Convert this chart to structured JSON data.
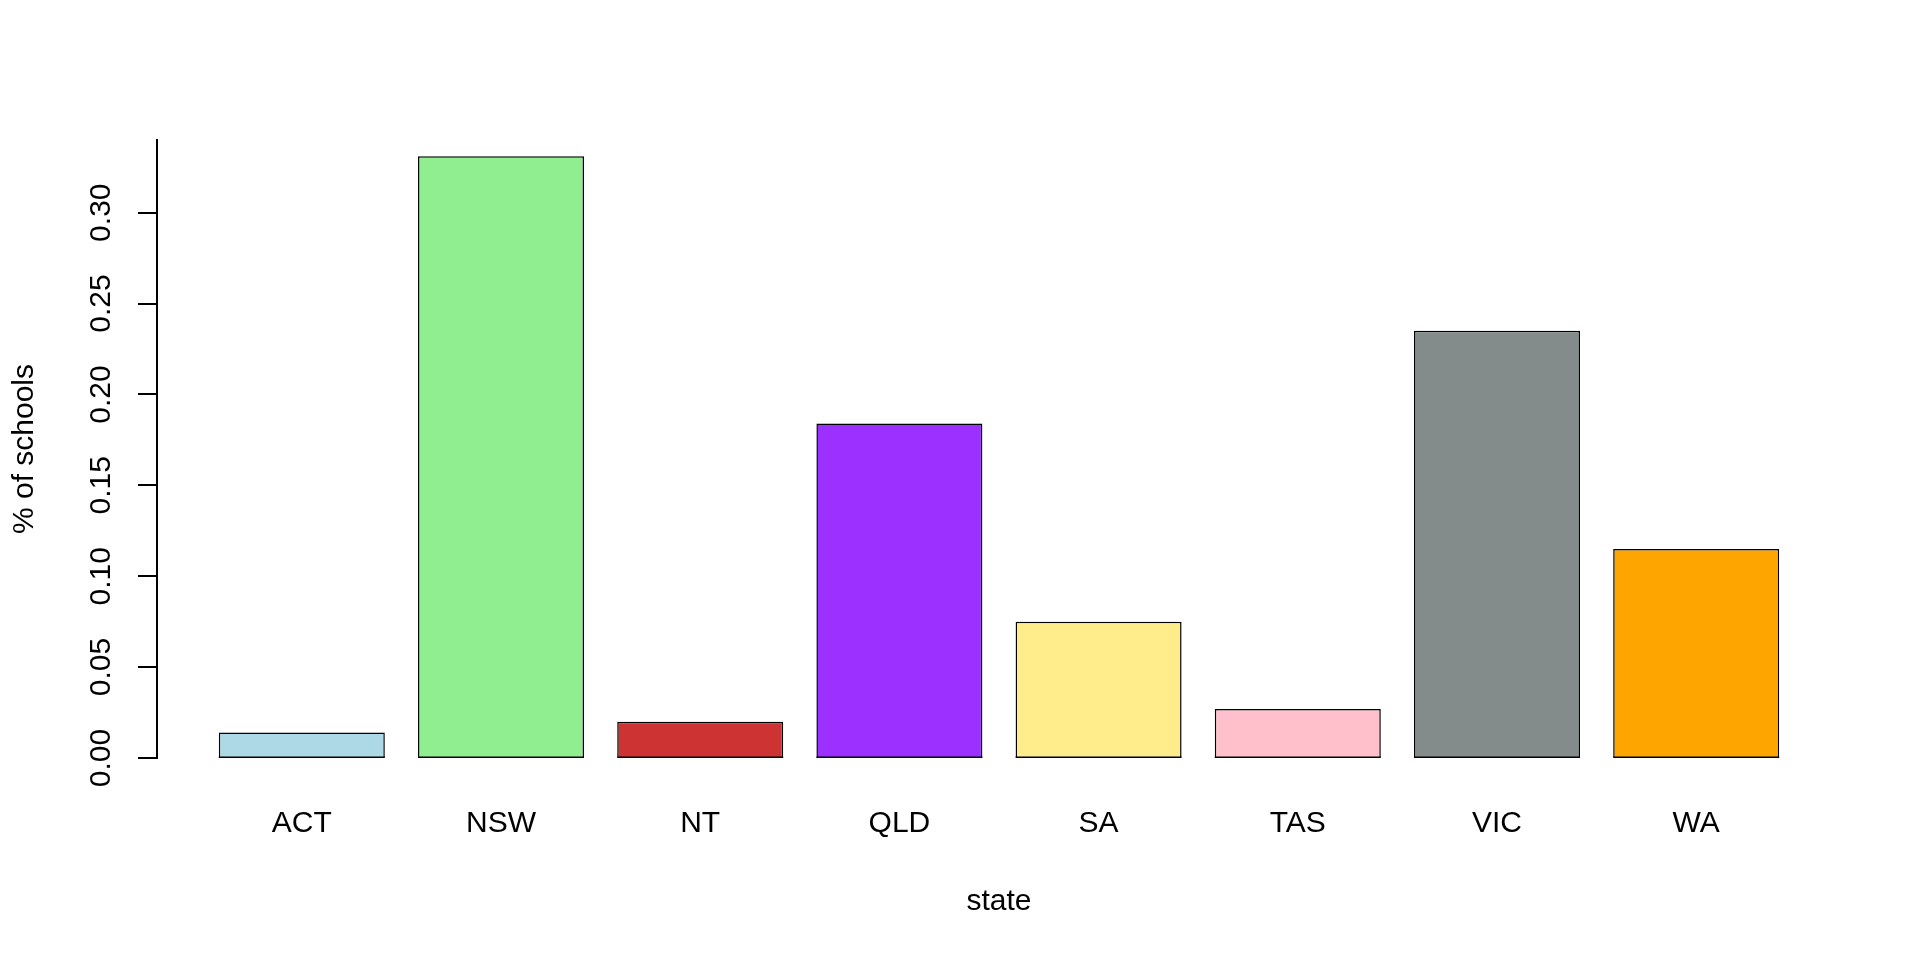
{
  "chart_data": {
    "type": "bar",
    "xlabel": "state",
    "ylabel": "% of schools",
    "categories": [
      "ACT",
      "NSW",
      "NT",
      "QLD",
      "SA",
      "TAS",
      "VIC",
      "WA"
    ],
    "values": [
      0.014,
      0.331,
      0.02,
      0.184,
      0.075,
      0.027,
      0.235,
      0.115
    ],
    "colors": [
      "#add8e6",
      "#90ee90",
      "#cd3333",
      "#9b30ff",
      "#ffec8b",
      "#ffc0cb",
      "#838b8b",
      "#ffa500"
    ],
    "ylim": [
      0,
      0.34
    ],
    "yticks": [
      {
        "value": 0,
        "label": "0.00"
      },
      {
        "value": 0.05,
        "label": "0.05"
      },
      {
        "value": 0.1,
        "label": "0.10"
      },
      {
        "value": 0.15,
        "label": "0.15"
      },
      {
        "value": 0.2,
        "label": "0.20"
      },
      {
        "value": 0.25,
        "label": "0.25"
      },
      {
        "value": 0.3,
        "label": "0.30"
      }
    ]
  }
}
